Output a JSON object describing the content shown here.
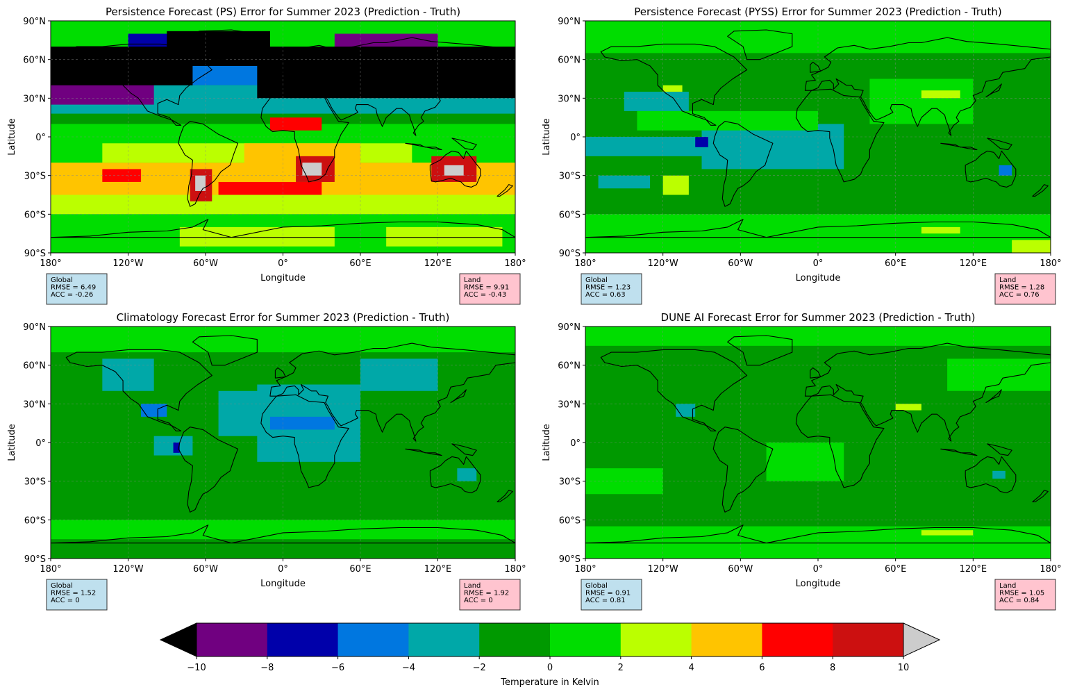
{
  "figure": {
    "panels": [
      {
        "title": "Persistence Forecast (PS) Error for Summer 2023 (Prediction - Truth)",
        "xlabel": "Longitude",
        "ylabel": "Latitude",
        "ocean_color": "#00dd00",
        "stats_global": [
          "Global",
          "RMSE = 6.49",
          "ACC = -0.26"
        ],
        "stats_land": [
          "Land",
          "RMSE = 9.91",
          "ACC = -0.43"
        ],
        "regions": [
          {
            "color": "#00dd00",
            "lon": [
              -180,
              180
            ],
            "lat": [
              -90,
              90
            ]
          },
          {
            "color": "#009900",
            "lon": [
              -180,
              180
            ],
            "lat": [
              10,
              30
            ]
          },
          {
            "color": "#00a8a8",
            "lon": [
              -180,
              180
            ],
            "lat": [
              18,
              40
            ]
          },
          {
            "color": "#0077e0",
            "lon": [
              -180,
              180
            ],
            "lat": [
              40,
              60
            ]
          },
          {
            "color": "#0000aa",
            "lon": [
              -120,
              -60
            ],
            "lat": [
              55,
              80
            ]
          },
          {
            "color": "#700080",
            "lon": [
              -180,
              -100
            ],
            "lat": [
              25,
              45
            ]
          },
          {
            "color": "#700080",
            "lon": [
              40,
              120
            ],
            "lat": [
              55,
              80
            ]
          },
          {
            "color": "#000000",
            "lon": [
              -180,
              -70
            ],
            "lat": [
              40,
              70
            ]
          },
          {
            "color": "#000000",
            "lon": [
              -20,
              180
            ],
            "lat": [
              30,
              70
            ]
          },
          {
            "color": "#000000",
            "lon": [
              -90,
              -10
            ],
            "lat": [
              55,
              82
            ]
          },
          {
            "color": "#ffc400",
            "lon": [
              -180,
              180
            ],
            "lat": [
              -45,
              -20
            ]
          },
          {
            "color": "#bbff00",
            "lon": [
              -180,
              180
            ],
            "lat": [
              -60,
              -45
            ]
          },
          {
            "color": "#bbff00",
            "lon": [
              -140,
              100
            ],
            "lat": [
              -20,
              -5
            ]
          },
          {
            "color": "#ffc400",
            "lon": [
              -30,
              60
            ],
            "lat": [
              -25,
              -5
            ]
          },
          {
            "color": "#ff0000",
            "lon": [
              -140,
              -110
            ],
            "lat": [
              -35,
              -25
            ]
          },
          {
            "color": "#ff0000",
            "lon": [
              -50,
              30
            ],
            "lat": [
              -45,
              -35
            ]
          },
          {
            "color": "#ff0000",
            "lon": [
              -10,
              30
            ],
            "lat": [
              5,
              15
            ]
          },
          {
            "color": "#cc1010",
            "lon": [
              10,
              40
            ],
            "lat": [
              -35,
              -15
            ]
          },
          {
            "color": "#cccccc",
            "lon": [
              15,
              30
            ],
            "lat": [
              -30,
              -20
            ]
          },
          {
            "color": "#cc1010",
            "lon": [
              115,
              150
            ],
            "lat": [
              -35,
              -15
            ]
          },
          {
            "color": "#cccccc",
            "lon": [
              125,
              140
            ],
            "lat": [
              -30,
              -22
            ]
          },
          {
            "color": "#cc1010",
            "lon": [
              -72,
              -55
            ],
            "lat": [
              -50,
              -25
            ]
          },
          {
            "color": "#cccccc",
            "lon": [
              -68,
              -60
            ],
            "lat": [
              -42,
              -30
            ]
          },
          {
            "color": "#bbff00",
            "lon": [
              -80,
              40
            ],
            "lat": [
              -85,
              -70
            ]
          },
          {
            "color": "#bbff00",
            "lon": [
              80,
              170
            ],
            "lat": [
              -85,
              -70
            ]
          }
        ]
      },
      {
        "title": "Persistence Forecast (PYSS) Error for Summer 2023 (Prediction - Truth)",
        "xlabel": "Longitude",
        "ylabel": "Latitude",
        "ocean_color": "#00dd00",
        "stats_global": [
          "Global",
          "RMSE = 1.23",
          "ACC = 0.63"
        ],
        "stats_land": [
          "Land",
          "RMSE = 1.28",
          "ACC = 0.76"
        ],
        "regions": [
          {
            "color": "#00dd00",
            "lon": [
              -180,
              180
            ],
            "lat": [
              -90,
              90
            ]
          },
          {
            "color": "#009900",
            "lon": [
              -180,
              180
            ],
            "lat": [
              -60,
              65
            ]
          },
          {
            "color": "#00a8a8",
            "lon": [
              -180,
              -90
            ],
            "lat": [
              -15,
              0
            ]
          },
          {
            "color": "#00a8a8",
            "lon": [
              -90,
              20
            ],
            "lat": [
              -25,
              10
            ]
          },
          {
            "color": "#00a8a8",
            "lon": [
              -150,
              -100
            ],
            "lat": [
              20,
              35
            ]
          },
          {
            "color": "#00a8a8",
            "lon": [
              -170,
              -130
            ],
            "lat": [
              -40,
              -30
            ]
          },
          {
            "color": "#0000aa",
            "lon": [
              -95,
              -85
            ],
            "lat": [
              -8,
              0
            ]
          },
          {
            "color": "#0077e0",
            "lon": [
              140,
              150
            ],
            "lat": [
              -30,
              -22
            ]
          },
          {
            "color": "#00dd00",
            "lon": [
              -140,
              0
            ],
            "lat": [
              5,
              20
            ]
          },
          {
            "color": "#00dd00",
            "lon": [
              40,
              120
            ],
            "lat": [
              10,
              45
            ]
          },
          {
            "color": "#bbff00",
            "lon": [
              80,
              110
            ],
            "lat": [
              30,
              36
            ]
          },
          {
            "color": "#bbff00",
            "lon": [
              -120,
              -105
            ],
            "lat": [
              35,
              40
            ]
          },
          {
            "color": "#bbff00",
            "lon": [
              -120,
              -100
            ],
            "lat": [
              -45,
              -30
            ]
          },
          {
            "color": "#bbff00",
            "lon": [
              150,
              180
            ],
            "lat": [
              -90,
              -80
            ]
          },
          {
            "color": "#bbff00",
            "lon": [
              80,
              110
            ],
            "lat": [
              -75,
              -70
            ]
          }
        ]
      },
      {
        "title": "Climatology Forecast Error for Summer 2023 (Prediction - Truth)",
        "xlabel": "Longitude",
        "ylabel": "Latitude",
        "ocean_color": "#009900",
        "stats_global": [
          "Global",
          "RMSE = 1.52",
          "ACC = 0"
        ],
        "stats_land": [
          "Land",
          "RMSE = 1.92",
          "ACC = 0"
        ],
        "regions": [
          {
            "color": "#009900",
            "lon": [
              -180,
              180
            ],
            "lat": [
              -90,
              90
            ]
          },
          {
            "color": "#00dd00",
            "lon": [
              -180,
              180
            ],
            "lat": [
              70,
              90
            ]
          },
          {
            "color": "#00dd00",
            "lon": [
              -180,
              180
            ],
            "lat": [
              -75,
              -60
            ]
          },
          {
            "color": "#00a8a8",
            "lon": [
              -50,
              20
            ],
            "lat": [
              5,
              40
            ]
          },
          {
            "color": "#00a8a8",
            "lon": [
              -20,
              60
            ],
            "lat": [
              -15,
              45
            ]
          },
          {
            "color": "#00a8a8",
            "lon": [
              60,
              120
            ],
            "lat": [
              40,
              65
            ]
          },
          {
            "color": "#00a8a8",
            "lon": [
              -140,
              -100
            ],
            "lat": [
              40,
              65
            ]
          },
          {
            "color": "#00a8a8",
            "lon": [
              -100,
              -70
            ],
            "lat": [
              -10,
              5
            ]
          },
          {
            "color": "#0077e0",
            "lon": [
              -110,
              -90
            ],
            "lat": [
              20,
              30
            ]
          },
          {
            "color": "#0077e0",
            "lon": [
              -10,
              40
            ],
            "lat": [
              10,
              20
            ]
          },
          {
            "color": "#0000aa",
            "lon": [
              -85,
              -80
            ],
            "lat": [
              -8,
              0
            ]
          },
          {
            "color": "#00a8a8",
            "lon": [
              135,
              150
            ],
            "lat": [
              -30,
              -20
            ]
          }
        ]
      },
      {
        "title": "DUNE AI Forecast Error for Summer 2023 (Prediction - Truth)",
        "xlabel": "Longitude",
        "ylabel": "Latitude",
        "ocean_color": "#009900",
        "stats_global": [
          "Global",
          "RMSE = 0.91",
          "ACC = 0.81"
        ],
        "stats_land": [
          "Land",
          "RMSE = 1.05",
          "ACC = 0.84"
        ],
        "regions": [
          {
            "color": "#009900",
            "lon": [
              -180,
              180
            ],
            "lat": [
              -90,
              90
            ]
          },
          {
            "color": "#00dd00",
            "lon": [
              -180,
              180
            ],
            "lat": [
              75,
              90
            ]
          },
          {
            "color": "#00dd00",
            "lon": [
              -180,
              180
            ],
            "lat": [
              -90,
              -65
            ]
          },
          {
            "color": "#00dd00",
            "lon": [
              -180,
              -120
            ],
            "lat": [
              -40,
              -20
            ]
          },
          {
            "color": "#00dd00",
            "lon": [
              100,
              180
            ],
            "lat": [
              40,
              65
            ]
          },
          {
            "color": "#00dd00",
            "lon": [
              -40,
              20
            ],
            "lat": [
              -30,
              0
            ]
          },
          {
            "color": "#00a8a8",
            "lon": [
              -110,
              -95
            ],
            "lat": [
              20,
              30
            ]
          },
          {
            "color": "#00a8a8",
            "lon": [
              135,
              145
            ],
            "lat": [
              -28,
              -22
            ]
          },
          {
            "color": "#bbff00",
            "lon": [
              80,
              120
            ],
            "lat": [
              -72,
              -68
            ]
          },
          {
            "color": "#bbff00",
            "lon": [
              60,
              80
            ],
            "lat": [
              25,
              30
            ]
          }
        ]
      }
    ],
    "xticks": [
      "180°",
      "120°W",
      "60°W",
      "0°",
      "60°E",
      "120°E",
      "180°"
    ],
    "yticks": [
      "90°N",
      "60°N",
      "30°N",
      "0°",
      "30°S",
      "60°S",
      "90°S"
    ],
    "colorbar": {
      "label": "Temperature in Kelvin",
      "ticks": [
        "−10",
        "−8",
        "−6",
        "−4",
        "−2",
        "0",
        "2",
        "4",
        "6",
        "8",
        "10"
      ],
      "under_color": "#000000",
      "over_color": "#cccccc",
      "colors": [
        "#700080",
        "#0000aa",
        "#0077e0",
        "#00a8a8",
        "#009900",
        "#00dd00",
        "#bbff00",
        "#ffc400",
        "#ff0000",
        "#cc1010"
      ]
    }
  },
  "chart_data": [
    {
      "type": "heatmap",
      "title": "Persistence Forecast (PS) Error for Summer 2023 (Prediction - Truth)",
      "xlabel": "Longitude",
      "ylabel": "Latitude",
      "xlim": [
        -180,
        180
      ],
      "ylim": [
        -90,
        90
      ],
      "stats": {
        "global": {
          "RMSE": 6.49,
          "ACC": -0.26
        },
        "land": {
          "RMSE": 9.91,
          "ACC": -0.43
        }
      }
    },
    {
      "type": "heatmap",
      "title": "Persistence Forecast (PYSS) Error for Summer 2023 (Prediction - Truth)",
      "xlabel": "Longitude",
      "ylabel": "Latitude",
      "xlim": [
        -180,
        180
      ],
      "ylim": [
        -90,
        90
      ],
      "stats": {
        "global": {
          "RMSE": 1.23,
          "ACC": 0.63
        },
        "land": {
          "RMSE": 1.28,
          "ACC": 0.76
        }
      }
    },
    {
      "type": "heatmap",
      "title": "Climatology Forecast Error for Summer 2023 (Prediction - Truth)",
      "xlabel": "Longitude",
      "ylabel": "Latitude",
      "xlim": [
        -180,
        180
      ],
      "ylim": [
        -90,
        90
      ],
      "stats": {
        "global": {
          "RMSE": 1.52,
          "ACC": 0
        },
        "land": {
          "RMSE": 1.92,
          "ACC": 0
        }
      }
    },
    {
      "type": "heatmap",
      "title": "DUNE AI Forecast Error for Summer 2023 (Prediction - Truth)",
      "xlabel": "Longitude",
      "ylabel": "Latitude",
      "xlim": [
        -180,
        180
      ],
      "ylim": [
        -90,
        90
      ],
      "stats": {
        "global": {
          "RMSE": 0.91,
          "ACC": 0.81
        },
        "land": {
          "RMSE": 1.05,
          "ACC": 0.84
        }
      }
    }
  ]
}
